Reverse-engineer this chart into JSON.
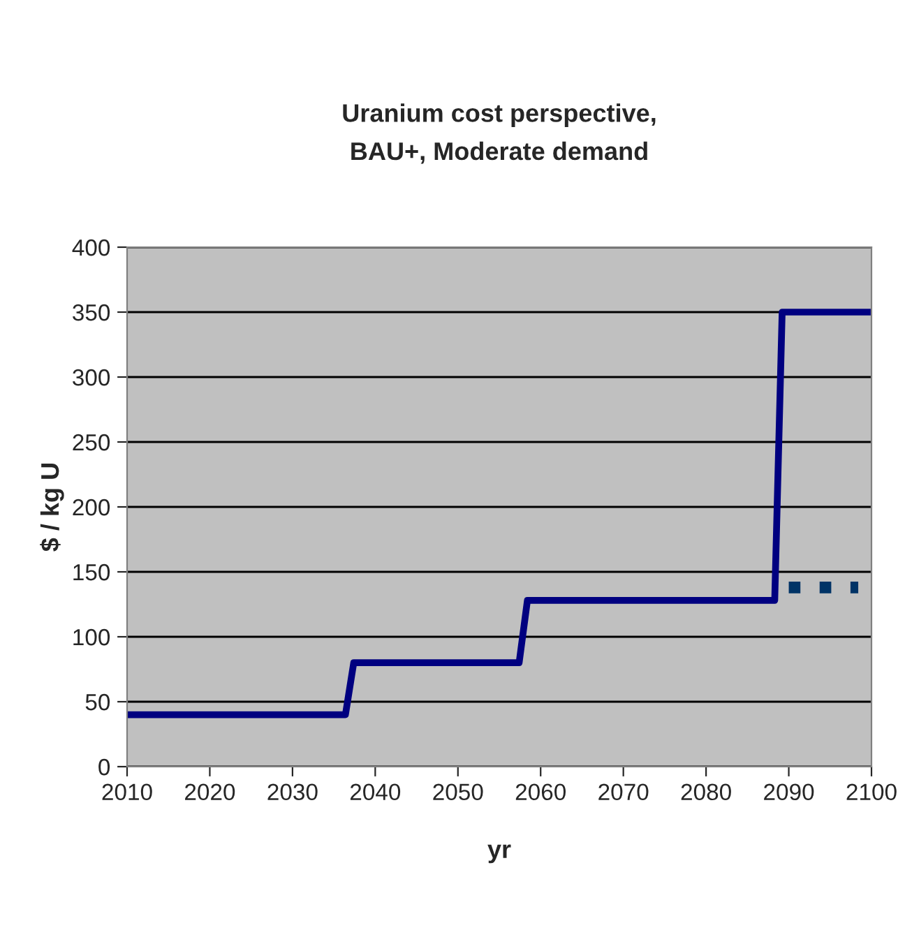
{
  "chart_data": {
    "type": "line",
    "title": "Uranium cost perspective,\nBAU+, Moderate demand",
    "xlabel": "yr",
    "ylabel": "$ / kg U",
    "series": [
      {
        "color": "#000080",
        "line_style": "solid",
        "x": [
          2010,
          2036.4,
          2037.4,
          2057.4,
          2058.4,
          2088.3,
          2089.2,
          2100
        ],
        "values": [
          40,
          40,
          80,
          80,
          128,
          128,
          350,
          350
        ]
      },
      {
        "color": "#003366",
        "line_style": "dotted",
        "x": [
          2090,
          2098.4
        ],
        "values": [
          138,
          138
        ]
      }
    ],
    "xlim": [
      2010,
      2100
    ],
    "xticks": [
      2010,
      2020,
      2030,
      2040,
      2050,
      2060,
      2070,
      2080,
      2090,
      2100
    ],
    "ylim": [
      0,
      400
    ],
    "yticks": [
      0,
      50,
      100,
      150,
      200,
      250,
      300,
      350,
      400
    ],
    "grid": "y",
    "marker": "none"
  }
}
